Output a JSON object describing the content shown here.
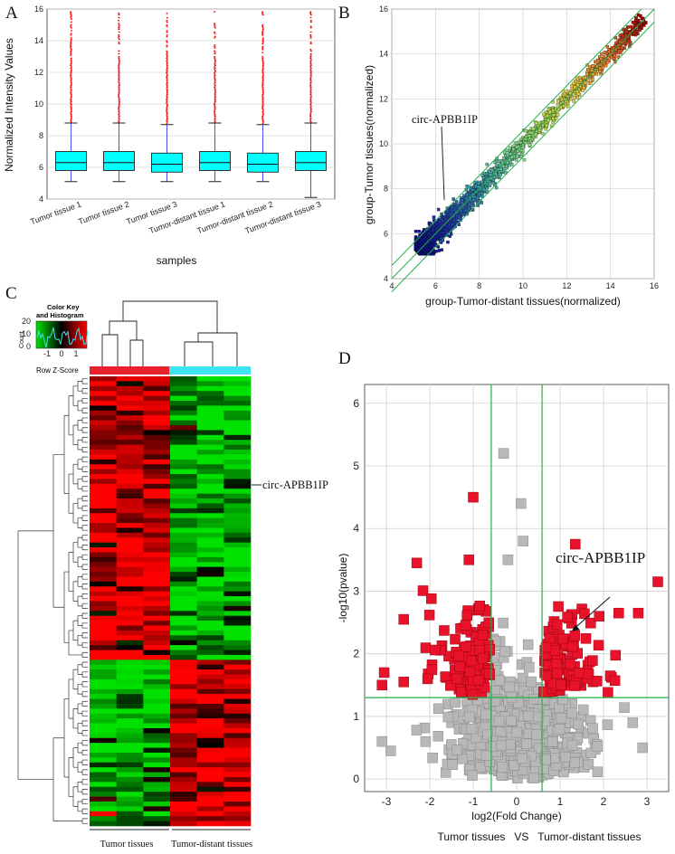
{
  "panels": {
    "a": "A",
    "b": "B",
    "c": "C",
    "d": "D"
  },
  "chart_data": [
    {
      "panel": "A",
      "type": "box",
      "title": "",
      "xlabel": "samples",
      "ylabel": "Normalized Intensity Values",
      "ylim": [
        4,
        16
      ],
      "yticks": [
        4,
        6,
        8,
        10,
        12,
        14,
        16
      ],
      "categories": [
        "Tumor tissue 1",
        "Tumor tissue 2",
        "Tumor tissue 3",
        "Tumor-distant tissue 1",
        "Tumor-distant tissue 2",
        "Tumor-distant tissue 3"
      ],
      "boxes": [
        {
          "whisker_low": 5.1,
          "q1": 5.8,
          "median": 6.3,
          "q3": 7.0,
          "whisker_high": 8.8,
          "outliers_max": 15.9
        },
        {
          "whisker_low": 5.1,
          "q1": 5.8,
          "median": 6.3,
          "q3": 7.0,
          "whisker_high": 8.8,
          "outliers_max": 15.9
        },
        {
          "whisker_low": 5.1,
          "q1": 5.7,
          "median": 6.2,
          "q3": 6.9,
          "whisker_high": 8.7,
          "outliers_max": 15.9
        },
        {
          "whisker_low": 5.1,
          "q1": 5.8,
          "median": 6.3,
          "q3": 7.0,
          "whisker_high": 8.8,
          "outliers_max": 15.9
        },
        {
          "whisker_low": 5.1,
          "q1": 5.7,
          "median": 6.2,
          "q3": 6.9,
          "whisker_high": 8.7,
          "outliers_max": 15.9
        },
        {
          "whisker_low": 4.1,
          "q1": 5.8,
          "median": 6.3,
          "q3": 7.0,
          "whisker_high": 8.8,
          "outliers_max": 15.9
        }
      ],
      "colors": {
        "box": "#00ffff",
        "whisker": "#4a4aff",
        "outlier": "#ff0000"
      }
    },
    {
      "panel": "B",
      "type": "scatter",
      "xlabel": "group-Tumor-distant tissues(normalized)",
      "ylabel": "group-Tumor tissues(normalized)",
      "xlim": [
        4,
        16
      ],
      "ylim": [
        4,
        16
      ],
      "xticks": [
        4,
        6,
        8,
        10,
        12,
        14,
        16
      ],
      "yticks": [
        4,
        6,
        8,
        10,
        12,
        14,
        16
      ],
      "reference_lines": [
        {
          "offset": 0
        },
        {
          "offset": 0.585
        },
        {
          "offset": -0.585
        }
      ],
      "annotation": {
        "text": "circ-APBB1IP",
        "point": [
          6.4,
          7.5
        ]
      },
      "note": "several thousand points concentrated along y=x between 5 and 10"
    },
    {
      "panel": "C",
      "type": "heatmap",
      "color_key_title": "Color Key and Histogram",
      "color_key_ylabel": "Count",
      "color_key_yticks": [
        "0",
        "10",
        "20"
      ],
      "color_key_xticks": [
        "-1",
        "0",
        "1"
      ],
      "scale_label": "Row Z-Score",
      "annotation": "circ-APBB1IP",
      "groups": [
        "Tumor tissues",
        "Tumor-distant tissues"
      ],
      "group_colors": [
        "#e8212c",
        "#3fe3f0"
      ],
      "columns": 6,
      "rows": 92
    },
    {
      "panel": "D",
      "type": "scatter",
      "xlabel": "log2(Fold Change)",
      "ylabel": "-log10(pvalue)",
      "xlim": [
        -3.5,
        3.5
      ],
      "ylim": [
        -0.2,
        6.3
      ],
      "xticks": [
        -3,
        -2,
        -1,
        0,
        1,
        2,
        3
      ],
      "yticks": [
        0,
        1,
        2,
        3,
        4,
        5,
        6
      ],
      "fc_cutoffs": [
        -0.585,
        0.585
      ],
      "p_cutoff": 1.3,
      "annotation": {
        "text": "circ-APBB1IP",
        "point": [
          1.25,
          2.35
        ]
      },
      "footer": "Tumor tissues   VS   Tumor-distant tissues",
      "colors": {
        "significant": "#e8132a",
        "nonsignificant": "#b8b8b8",
        "cutoff": "#22b14c"
      }
    }
  ]
}
